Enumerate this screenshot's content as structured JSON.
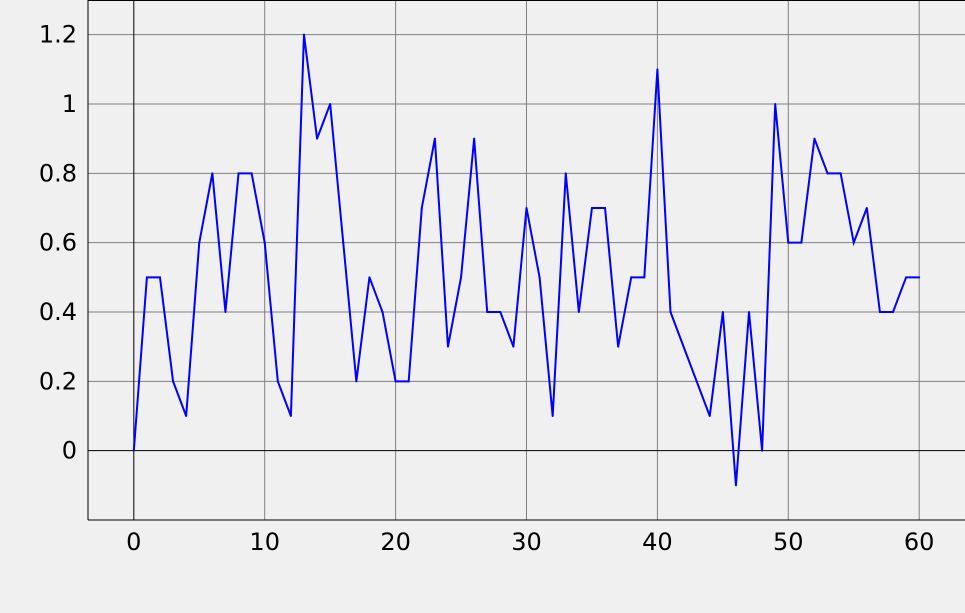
{
  "chart_data": {
    "type": "line",
    "title": "",
    "xlabel": "",
    "ylabel": "",
    "xlim": [
      -3.5,
      63.5
    ],
    "ylim": [
      -0.2,
      1.3
    ],
    "x_ticks": [
      0,
      10,
      20,
      30,
      40,
      50,
      60
    ],
    "x_tick_labels": [
      "0",
      "10",
      "20",
      "30",
      "40",
      "50",
      "60"
    ],
    "y_ticks": [
      0,
      0.2,
      0.4,
      0.6,
      0.8,
      1,
      1.2
    ],
    "y_tick_labels": [
      "0",
      "0.2",
      "0.4",
      "0.6",
      "0.8",
      "1",
      "1.2"
    ],
    "grid": true,
    "legend": "none",
    "colors": {
      "background": "#f0f0f0",
      "series": "#0000ff",
      "grid": "#808080",
      "zero_lines": "#000000"
    },
    "series": [
      {
        "x": [
          0,
          1,
          2,
          3,
          4,
          5,
          6,
          7,
          8,
          9,
          10,
          11,
          12,
          13,
          14,
          15,
          16,
          17,
          18,
          19,
          20,
          21,
          22,
          23,
          24,
          25,
          26,
          27,
          28,
          29,
          30,
          31,
          32,
          33,
          34,
          35,
          36,
          37,
          38,
          39,
          40,
          41,
          44,
          45,
          46,
          47,
          48,
          49,
          50,
          51,
          52,
          53,
          54,
          55,
          56,
          57,
          58,
          59,
          60
        ],
        "values": [
          0,
          0.5,
          0.5,
          0.2,
          0.1,
          0.6,
          0.8,
          0.4,
          0.8,
          0.8,
          0.6,
          0.2,
          0.1,
          1.2,
          0.9,
          1.0,
          0.6,
          0.2,
          0.5,
          0.4,
          0.2,
          0.2,
          0.7,
          0.9,
          0.3,
          0.5,
          0.9,
          0.4,
          0.4,
          0.3,
          0.7,
          0.5,
          0.1,
          0.8,
          0.4,
          0.7,
          0.7,
          0.3,
          0.5,
          0.5,
          1.1,
          0.4,
          0.1,
          0.4,
          -0.1,
          0.4,
          0,
          1.0,
          0.6,
          0.6,
          0.9,
          0.8,
          0.8,
          0.6,
          0.7,
          0.4,
          0.4,
          0.5,
          0.5
        ]
      }
    ]
  }
}
